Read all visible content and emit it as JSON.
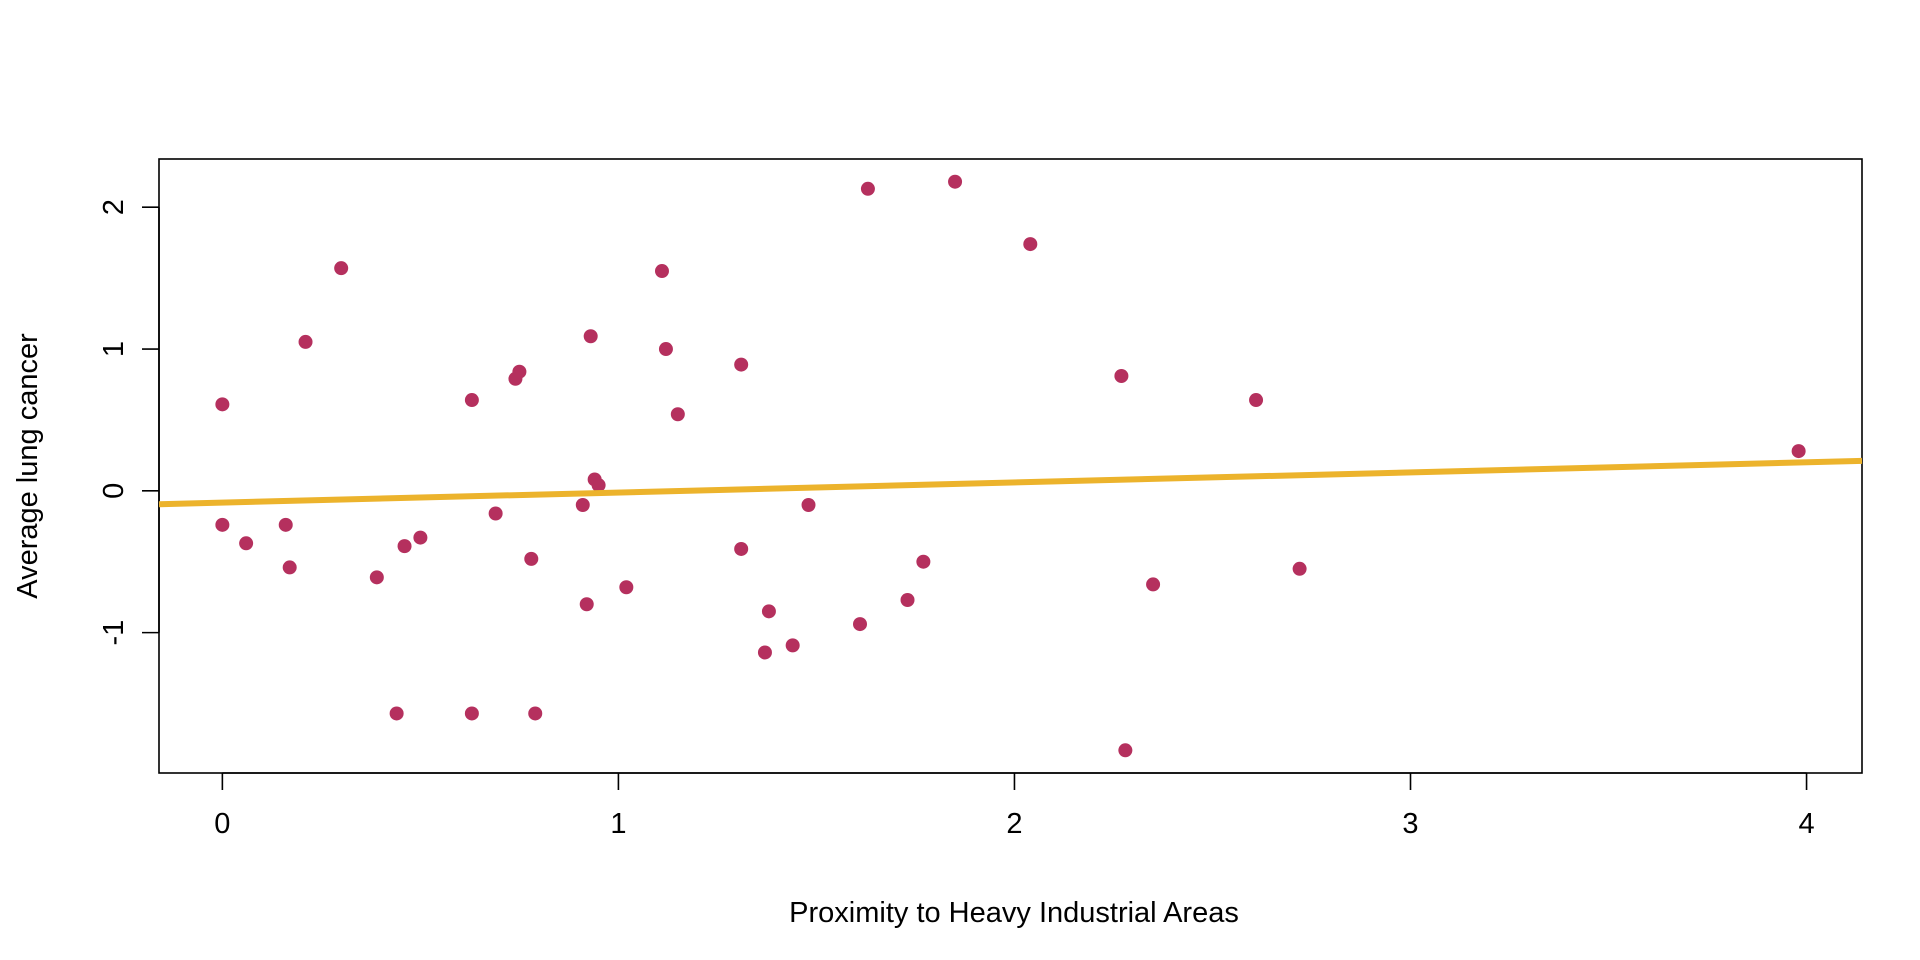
{
  "chart_data": {
    "type": "scatter",
    "title": "",
    "xlabel": "Proximity to Heavy Industrial Areas",
    "ylabel": "Average lung cancer",
    "xlim": [
      -0.16,
      4.14
    ],
    "ylim": [
      -1.99,
      2.34
    ],
    "x_ticks": [
      0,
      1,
      2,
      3,
      4
    ],
    "y_ticks": [
      -1,
      0,
      1,
      2
    ],
    "x_tick_labels": [
      "0",
      "1",
      "2",
      "3",
      "4"
    ],
    "y_tick_labels": [
      "-1",
      "0",
      "1",
      "2"
    ],
    "grid": false,
    "legend": "none",
    "point_color": "#b5305e",
    "line_color": "#ecb32c",
    "trend_line": {
      "intercept": -0.083,
      "slope": 0.071
    },
    "points": [
      {
        "x": 0.0,
        "y": 0.61
      },
      {
        "x": 0.0,
        "y": -0.24
      },
      {
        "x": 0.06,
        "y": -0.37
      },
      {
        "x": 0.16,
        "y": -0.24
      },
      {
        "x": 0.17,
        "y": -0.54
      },
      {
        "x": 0.21,
        "y": 1.05
      },
      {
        "x": 0.3,
        "y": 1.57
      },
      {
        "x": 0.39,
        "y": -0.61
      },
      {
        "x": 0.44,
        "y": -1.57
      },
      {
        "x": 0.46,
        "y": -0.39
      },
      {
        "x": 0.5,
        "y": -0.33
      },
      {
        "x": 0.63,
        "y": 0.64
      },
      {
        "x": 0.63,
        "y": -1.57
      },
      {
        "x": 0.69,
        "y": -0.16
      },
      {
        "x": 0.74,
        "y": 0.79
      },
      {
        "x": 0.75,
        "y": 0.84
      },
      {
        "x": 0.78,
        "y": -0.48
      },
      {
        "x": 0.79,
        "y": -1.57
      },
      {
        "x": 0.91,
        "y": -0.1
      },
      {
        "x": 0.92,
        "y": -0.8
      },
      {
        "x": 0.93,
        "y": 1.09
      },
      {
        "x": 0.94,
        "y": 0.08
      },
      {
        "x": 0.95,
        "y": 0.04
      },
      {
        "x": 1.02,
        "y": -0.68
      },
      {
        "x": 1.11,
        "y": 1.55
      },
      {
        "x": 1.12,
        "y": 1.0
      },
      {
        "x": 1.15,
        "y": 0.54
      },
      {
        "x": 1.31,
        "y": 0.89
      },
      {
        "x": 1.31,
        "y": -0.41
      },
      {
        "x": 1.37,
        "y": -1.14
      },
      {
        "x": 1.38,
        "y": -0.85
      },
      {
        "x": 1.44,
        "y": -1.09
      },
      {
        "x": 1.48,
        "y": -0.1
      },
      {
        "x": 1.61,
        "y": -0.94
      },
      {
        "x": 1.63,
        "y": 2.13
      },
      {
        "x": 1.73,
        "y": -0.77
      },
      {
        "x": 1.77,
        "y": -0.5
      },
      {
        "x": 1.85,
        "y": 2.18
      },
      {
        "x": 2.04,
        "y": 1.74
      },
      {
        "x": 2.27,
        "y": 0.81
      },
      {
        "x": 2.28,
        "y": -1.83
      },
      {
        "x": 2.35,
        "y": -0.66
      },
      {
        "x": 2.61,
        "y": 0.64
      },
      {
        "x": 2.72,
        "y": -0.55
      },
      {
        "x": 3.98,
        "y": 0.28
      }
    ]
  }
}
